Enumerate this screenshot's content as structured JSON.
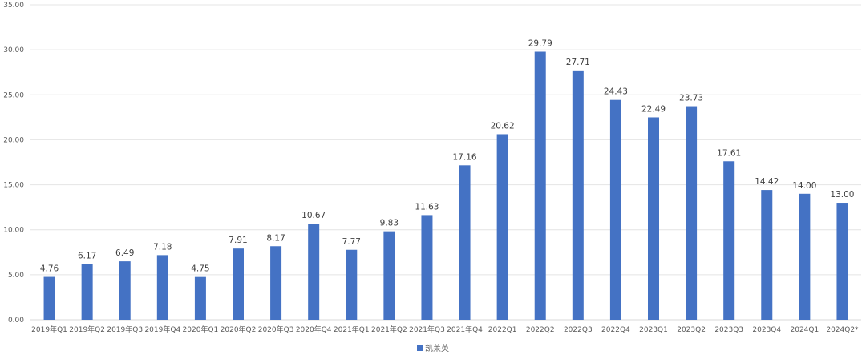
{
  "chart_data": {
    "type": "bar",
    "title": "",
    "xlabel": "",
    "ylabel": "",
    "ylim": [
      0,
      35
    ],
    "yticks": [
      "0.00",
      "5.00",
      "10.00",
      "15.00",
      "20.00",
      "25.00",
      "30.00",
      "35.00"
    ],
    "grid": true,
    "legend_position": "bottom-center",
    "bar_color": "#4472C4",
    "categories": [
      "2019年Q1",
      "2019年Q2",
      "2019年Q3",
      "2019年Q4",
      "2020年Q1",
      "2020年Q2",
      "2020年Q3",
      "2020年Q4",
      "2021年Q1",
      "2021年Q2",
      "2021年Q3",
      "2021年Q4",
      "2022Q1",
      "2022Q2",
      "2022Q3",
      "2022Q4",
      "2023Q1",
      "2023Q2",
      "2023Q3",
      "2023Q4",
      "2024Q1",
      "2024Q2*"
    ],
    "series": [
      {
        "name": "凯莱英",
        "values": [
          4.76,
          6.17,
          6.49,
          7.18,
          4.75,
          7.91,
          8.17,
          10.67,
          7.77,
          9.83,
          11.63,
          17.16,
          20.62,
          29.79,
          27.71,
          24.43,
          22.49,
          23.73,
          17.61,
          14.42,
          14.0,
          13.0
        ],
        "labels": [
          "4.76",
          "6.17",
          "6.49",
          "7.18",
          "4.75",
          "7.91",
          "8.17",
          "10.67",
          "7.77",
          "9.83",
          "11.63",
          "17.16",
          "20.62",
          "29.79",
          "27.71",
          "24.43",
          "22.49",
          "23.73",
          "17.61",
          "14.42",
          "14.00",
          "13.00"
        ]
      }
    ]
  }
}
